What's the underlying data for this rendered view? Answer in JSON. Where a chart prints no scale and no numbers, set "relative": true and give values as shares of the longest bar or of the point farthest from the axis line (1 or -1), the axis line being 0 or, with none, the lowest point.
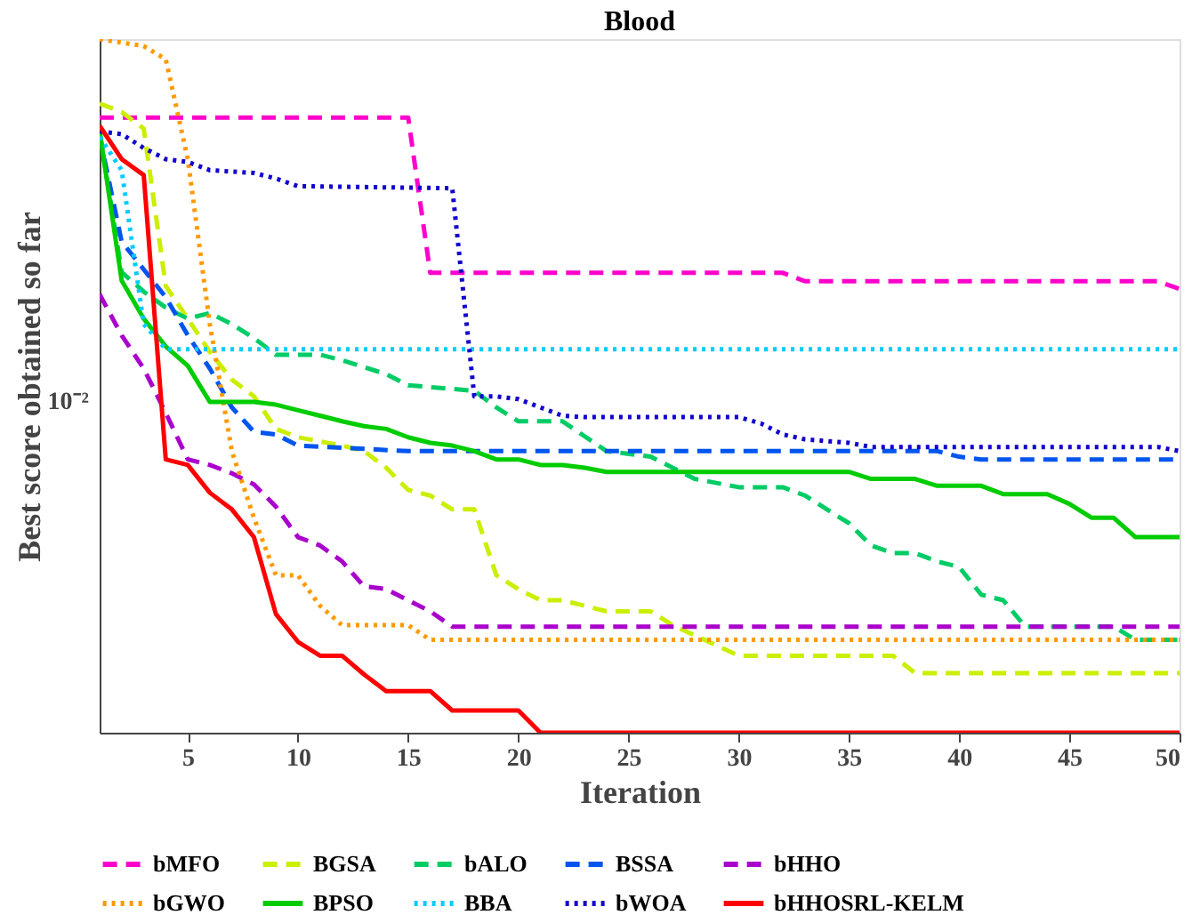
{
  "chart_data": {
    "type": "line",
    "title": "Blood",
    "xlabel": "Iteration",
    "ylabel": "Best score obtained so far",
    "relative": true,
    "xlim": [
      1,
      50
    ],
    "xticks": [
      5,
      10,
      15,
      20,
      25,
      30,
      35,
      40,
      45,
      50
    ],
    "grid": false,
    "legend": "bottom",
    "marker": "none",
    "annotations": [
      "10⁻²"
    ],
    "series": [
      {
        "name": "bMFO",
        "color": "#ff00cc",
        "line_style": "dashed",
        "x": [
          1,
          15,
          16,
          32,
          33,
          49,
          50
        ],
        "values": [
          0.887,
          0.887,
          0.663,
          0.663,
          0.651,
          0.651,
          0.64
        ]
      },
      {
        "name": "BGSA",
        "color": "#ccee00",
        "line_style": "dashed",
        "x": [
          1,
          2,
          3,
          4,
          5,
          6,
          7,
          8,
          9,
          10,
          12,
          13,
          14,
          15,
          16,
          17,
          18,
          19,
          20,
          21,
          22,
          24,
          26,
          27,
          30,
          37,
          38,
          50
        ],
        "values": [
          0.907,
          0.895,
          0.871,
          0.644,
          0.597,
          0.549,
          0.509,
          0.485,
          0.438,
          0.426,
          0.414,
          0.406,
          0.382,
          0.35,
          0.342,
          0.322,
          0.322,
          0.227,
          0.207,
          0.191,
          0.191,
          0.175,
          0.175,
          0.155,
          0.111,
          0.111,
          0.086,
          0.086
        ]
      },
      {
        "name": "bALO",
        "color": "#00cc66",
        "line_style": "dashed",
        "x": [
          1,
          2,
          3,
          4,
          5,
          6,
          7,
          8,
          9,
          11,
          12,
          14,
          15,
          18,
          19,
          20,
          22,
          24,
          26,
          27,
          28,
          30,
          32,
          33,
          34,
          35,
          36,
          37,
          38,
          39,
          40,
          41,
          42,
          43,
          47,
          48,
          50
        ],
        "values": [
          0.867,
          0.664,
          0.636,
          0.613,
          0.597,
          0.605,
          0.589,
          0.569,
          0.545,
          0.545,
          0.537,
          0.517,
          0.501,
          0.493,
          0.469,
          0.449,
          0.449,
          0.406,
          0.398,
          0.382,
          0.366,
          0.354,
          0.354,
          0.342,
          0.322,
          0.302,
          0.27,
          0.259,
          0.259,
          0.247,
          0.239,
          0.199,
          0.191,
          0.153,
          0.153,
          0.134,
          0.134
        ]
      },
      {
        "name": "BSSA",
        "color": "#0055ee",
        "line_style": "dashed",
        "x": [
          1,
          2,
          3,
          4,
          5,
          6,
          7,
          8,
          9,
          10,
          15,
          39,
          40,
          41,
          50
        ],
        "values": [
          0.86,
          0.708,
          0.668,
          0.628,
          0.573,
          0.525,
          0.469,
          0.434,
          0.43,
          0.414,
          0.406,
          0.406,
          0.398,
          0.394,
          0.394
        ]
      },
      {
        "name": "bHHO",
        "color": "#aa00cc",
        "line_style": "dashed",
        "x": [
          1,
          2,
          3,
          4,
          5,
          6,
          7,
          8,
          9,
          10,
          11,
          12,
          13,
          14,
          16,
          17,
          50
        ],
        "values": [
          0.632,
          0.573,
          0.525,
          0.461,
          0.394,
          0.386,
          0.374,
          0.358,
          0.326,
          0.282,
          0.27,
          0.247,
          0.211,
          0.207,
          0.175,
          0.153,
          0.153
        ]
      },
      {
        "name": "bGWO",
        "color": "#ff9900",
        "line_style": "dotted",
        "x": [
          1,
          3,
          4,
          5,
          6,
          7,
          8,
          9,
          10,
          11,
          12,
          15,
          16,
          50
        ],
        "values": [
          1.0,
          0.99,
          0.971,
          0.827,
          0.589,
          0.406,
          0.31,
          0.227,
          0.227,
          0.183,
          0.155,
          0.155,
          0.134,
          0.134
        ]
      },
      {
        "name": "BPSO",
        "color": "#00cc00",
        "line_style": "solid",
        "x": [
          1,
          2,
          3,
          4,
          5,
          6,
          8,
          9,
          10,
          11,
          12,
          13,
          14,
          15,
          16,
          17,
          18,
          19,
          20,
          21,
          22,
          23,
          24,
          35,
          36,
          38,
          39,
          41,
          42,
          44,
          45,
          46,
          47,
          48,
          50
        ],
        "values": [
          0.867,
          0.652,
          0.597,
          0.557,
          0.529,
          0.477,
          0.477,
          0.473,
          0.465,
          0.457,
          0.449,
          0.442,
          0.438,
          0.426,
          0.418,
          0.414,
          0.406,
          0.394,
          0.394,
          0.386,
          0.386,
          0.382,
          0.376,
          0.376,
          0.366,
          0.366,
          0.356,
          0.356,
          0.344,
          0.344,
          0.33,
          0.31,
          0.31,
          0.282,
          0.282
        ]
      },
      {
        "name": "BBA",
        "color": "#00ccff",
        "line_style": "dotted",
        "x": [
          1,
          2,
          3,
          4,
          50
        ],
        "values": [
          0.859,
          0.811,
          0.589,
          0.553,
          0.553
        ]
      },
      {
        "name": "bWOA",
        "color": "#1100cc",
        "line_style": "dotted",
        "x": [
          1,
          2,
          3,
          4,
          5,
          6,
          8,
          9,
          10,
          17,
          18,
          19,
          20,
          21,
          22,
          23,
          30,
          31,
          32,
          33,
          35,
          36,
          49,
          50
        ],
        "values": [
          0.867,
          0.863,
          0.843,
          0.827,
          0.823,
          0.811,
          0.807,
          0.799,
          0.788,
          0.785,
          0.485,
          0.485,
          0.481,
          0.469,
          0.457,
          0.455,
          0.455,
          0.446,
          0.43,
          0.423,
          0.418,
          0.412,
          0.412,
          0.406
        ]
      },
      {
        "name": "bHHOSRL-KELM",
        "color": "#ff0000",
        "line_style": "solid",
        "x": [
          1,
          2,
          3,
          4,
          5,
          6,
          7,
          8,
          9,
          10,
          11,
          12,
          13,
          14,
          16,
          17,
          20,
          21,
          50
        ],
        "values": [
          0.875,
          0.827,
          0.804,
          0.394,
          0.386,
          0.346,
          0.322,
          0.282,
          0.171,
          0.131,
          0.111,
          0.111,
          0.084,
          0.06,
          0.06,
          0.032,
          0.032,
          0.0,
          0.0
        ]
      }
    ]
  }
}
